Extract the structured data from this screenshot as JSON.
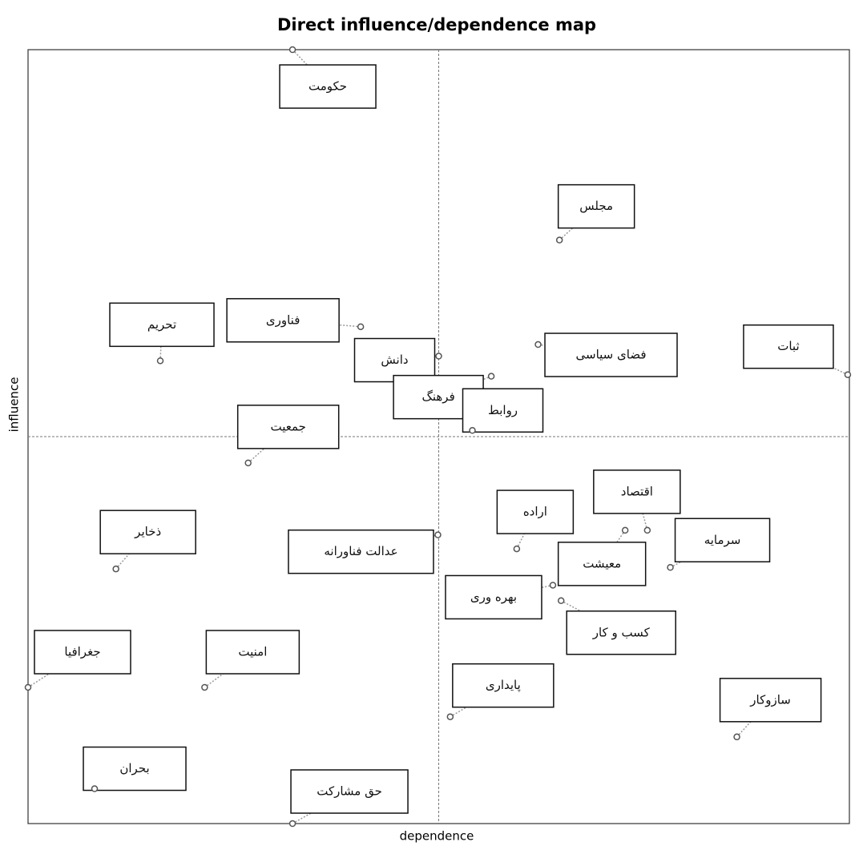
{
  "chart_data": {
    "type": "scatter",
    "title": "Direct influence/dependence map",
    "xlabel": "dependence",
    "ylabel": "influence",
    "labels": [
      "حکومت",
      "مجلس",
      "تحریم",
      "فناوری",
      "دانش",
      "فرهنگ",
      "روابط",
      "فضای سیاسی",
      "ثبات",
      "جمعیت",
      "ذخایر",
      "عدالت فناورانه",
      "اراده",
      "اقتصاد",
      "معیشت",
      "سرمایه",
      "بهره وری",
      "کسب و کار",
      "جغرافیا",
      "امنیت",
      "پایداری",
      "سازوکار",
      "بحران",
      "حق مشارکت"
    ],
    "x": [
      32.2,
      64.7,
      16.1,
      40.5,
      50.0,
      56.4,
      54.1,
      62.1,
      99.8,
      26.8,
      10.7,
      49.9,
      59.5,
      75.4,
      72.7,
      78.2,
      63.9,
      64.9,
      0.0,
      21.5,
      51.4,
      86.3,
      8.1,
      32.2
    ],
    "y": [
      100.0,
      75.4,
      59.8,
      64.2,
      60.4,
      57.8,
      50.8,
      61.9,
      58.0,
      46.6,
      32.9,
      37.3,
      35.5,
      37.9,
      37.9,
      33.1,
      30.8,
      28.8,
      17.6,
      17.6,
      13.8,
      11.2,
      4.5,
      0.0
    ],
    "xlim": [
      0,
      100
    ],
    "ylim": [
      0,
      100
    ],
    "xline": 50,
    "yline": 50
  }
}
